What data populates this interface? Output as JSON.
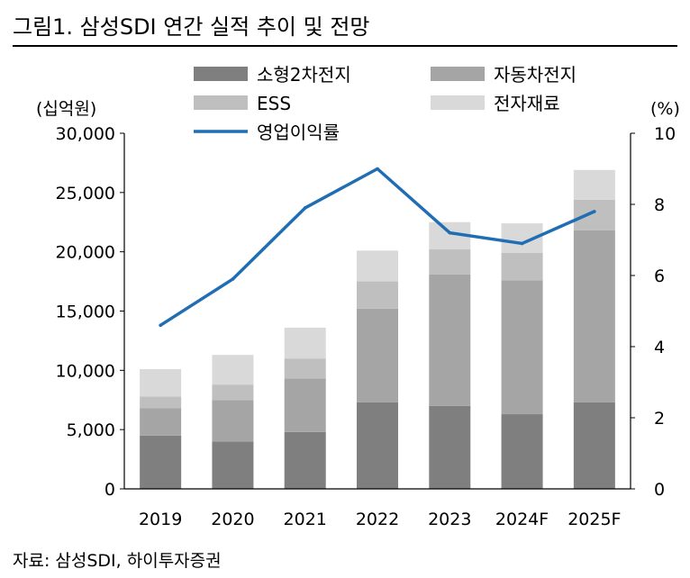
{
  "header": {
    "title": "그림1. 삼성SDI 연간 실적 추이 및 전망"
  },
  "footer": {
    "source": "자료: 삼성SDI, 하이투자증권"
  },
  "chart_data": {
    "type": "bar",
    "stacked": true,
    "title": "그림1. 삼성SDI 연간 실적 추이 및 전망",
    "categories": [
      "2019",
      "2020",
      "2021",
      "2022",
      "2023",
      "2024F",
      "2025F"
    ],
    "left_axis": {
      "unit_label": "(십억원)",
      "ylim": [
        0,
        30000
      ],
      "ticks": [
        "0",
        "5,000",
        "10,000",
        "15,000",
        "20,000",
        "25,000",
        "30,000"
      ],
      "tick_values": [
        0,
        5000,
        10000,
        15000,
        20000,
        25000,
        30000
      ]
    },
    "right_axis": {
      "unit_label": "(%)",
      "ylim": [
        0,
        10
      ],
      "ticks": [
        "0",
        "2",
        "4",
        "6",
        "8",
        "10"
      ],
      "tick_values": [
        0,
        2,
        4,
        6,
        8,
        10
      ]
    },
    "series": [
      {
        "name": "소형2차전지",
        "kind": "bar",
        "color": "#7f7f7f",
        "values": [
          4500,
          4000,
          4800,
          7300,
          7000,
          6300,
          7300
        ]
      },
      {
        "name": "자동차전지",
        "kind": "bar",
        "color": "#a5a5a5",
        "values": [
          2300,
          3500,
          4500,
          7900,
          11100,
          11300,
          14500
        ]
      },
      {
        "name": "ESS",
        "kind": "bar",
        "color": "#bfbfbf",
        "values": [
          1000,
          1300,
          1700,
          2300,
          2100,
          2300,
          2600
        ]
      },
      {
        "name": "전자재료",
        "kind": "bar",
        "color": "#d9d9d9",
        "values": [
          2300,
          2500,
          2600,
          2600,
          2300,
          2500,
          2500
        ]
      },
      {
        "name": "영업이익률",
        "kind": "line",
        "axis": "right",
        "color": "#1f6eb4",
        "values": [
          4.6,
          5.9,
          7.9,
          9.0,
          7.2,
          6.9,
          7.8
        ]
      }
    ],
    "legend": {
      "placement": "top"
    }
  }
}
